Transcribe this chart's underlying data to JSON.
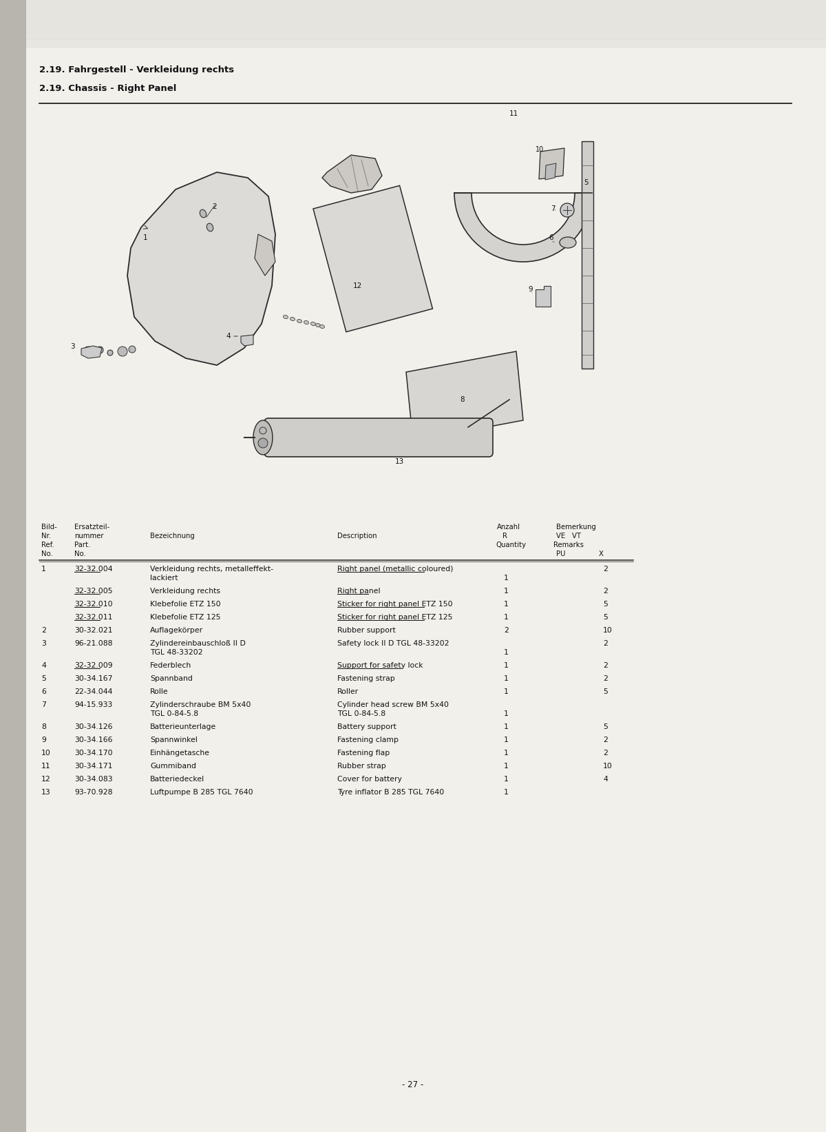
{
  "title1": "2.19. Fahrgestell - Verkleidung rechts",
  "title2": "2.19. Chassis - Right Panel",
  "page_number": "- 27 -",
  "bg_color": "#e8e5e0",
  "page_bg": "#dedad4",
  "parts": [
    {
      "ref": "1",
      "part_no": "32-32.004",
      "part_no_ul": true,
      "bezeichnung": "Verkleidung rechts, metalleffekt-\nlackiert",
      "description": "Right panel (metallic coloured)",
      "desc_ul": true,
      "quantity": "1",
      "x": "2"
    },
    {
      "ref": "",
      "part_no": "32-32.005",
      "part_no_ul": true,
      "bezeichnung": "Verkleidung rechts",
      "description": "Right panel",
      "desc_ul": true,
      "quantity": "1",
      "x": "2"
    },
    {
      "ref": "",
      "part_no": "32-32.010",
      "part_no_ul": true,
      "bezeichnung": "Klebefolie ETZ 150",
      "description": "Sticker for right panel ETZ 150",
      "desc_ul": true,
      "quantity": "1",
      "x": "5"
    },
    {
      "ref": "",
      "part_no": "32-32.011",
      "part_no_ul": true,
      "bezeichnung": "Klebefolie ETZ 125",
      "description": "Sticker for right panel ETZ 125",
      "desc_ul": true,
      "quantity": "1",
      "x": "5"
    },
    {
      "ref": "2",
      "part_no": "30-32.021",
      "part_no_ul": false,
      "bezeichnung": "Auflagekörper",
      "description": "Rubber support",
      "desc_ul": false,
      "quantity": "2",
      "x": "10"
    },
    {
      "ref": "3",
      "part_no": "96-21.088",
      "part_no_ul": false,
      "bezeichnung": "Zylindereinbauschloß II D\nTGL 48-33202",
      "description": "Safety lock II D TGL 48-33202",
      "desc_ul": false,
      "quantity": "1",
      "x": "2"
    },
    {
      "ref": "4",
      "part_no": "32-32.009",
      "part_no_ul": true,
      "bezeichnung": "Federblech",
      "description": "Support for safety lock",
      "desc_ul": true,
      "quantity": "1",
      "x": "2"
    },
    {
      "ref": "5",
      "part_no": "30-34.167",
      "part_no_ul": false,
      "bezeichnung": "Spannband",
      "description": "Fastening strap",
      "desc_ul": false,
      "quantity": "1",
      "x": "2"
    },
    {
      "ref": "6",
      "part_no": "22-34.044",
      "part_no_ul": false,
      "bezeichnung": "Rolle",
      "description": "Roller",
      "desc_ul": false,
      "quantity": "1",
      "x": "5"
    },
    {
      "ref": "7",
      "part_no": "94-15.933",
      "part_no_ul": false,
      "bezeichnung": "Zylinderschraube BM 5x40\nTGL 0-84-5.8",
      "description": "Cylinder head screw BM 5x40\nTGL 0-84-5.8",
      "desc_ul": false,
      "quantity": "1",
      "x": ""
    },
    {
      "ref": "8",
      "part_no": "30-34.126",
      "part_no_ul": false,
      "bezeichnung": "Batterieunterlage",
      "description": "Battery support",
      "desc_ul": false,
      "quantity": "1",
      "x": "5"
    },
    {
      "ref": "9",
      "part_no": "30-34.166",
      "part_no_ul": false,
      "bezeichnung": "Spannwinkel",
      "description": "Fastening clamp",
      "desc_ul": false,
      "quantity": "1",
      "x": "2"
    },
    {
      "ref": "10",
      "part_no": "30-34.170",
      "part_no_ul": false,
      "bezeichnung": "Einhängetasche",
      "description": "Fastening flap",
      "desc_ul": false,
      "quantity": "1",
      "x": "2"
    },
    {
      "ref": "11",
      "part_no": "30-34.171",
      "part_no_ul": false,
      "bezeichnung": "Gummiband",
      "description": "Rubber strap",
      "desc_ul": false,
      "quantity": "1",
      "x": "10"
    },
    {
      "ref": "12",
      "part_no": "30-34.083",
      "part_no_ul": false,
      "bezeichnung": "Batteriedeckel",
      "description": "Cover for battery",
      "desc_ul": false,
      "quantity": "1",
      "x": "4"
    },
    {
      "ref": "13",
      "part_no": "93-70.928",
      "part_no_ul": false,
      "bezeichnung": "Luftpumpe B 285 TGL 7640",
      "description": "Tyre inflator B 285 TGL 7640",
      "desc_ul": false,
      "quantity": "1",
      "x": ""
    }
  ]
}
